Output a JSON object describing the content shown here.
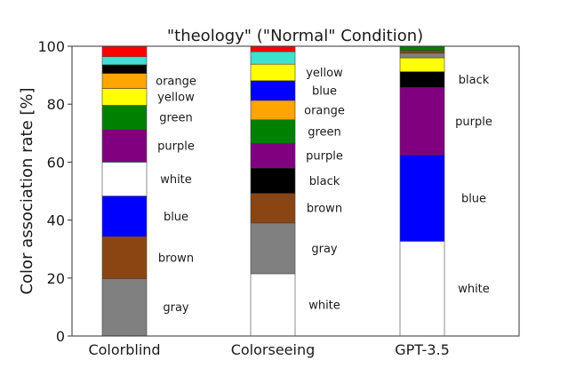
{
  "chart_data": {
    "type": "bar",
    "stacked": true,
    "title": "\"theology\" (\"Normal\" Condition)",
    "xlabel": "",
    "ylabel": "Color association rate [%]",
    "ylim": [
      0,
      100
    ],
    "yticks": [
      0,
      20,
      40,
      60,
      80,
      100
    ],
    "grid": false,
    "categories": [
      "Colorblind",
      "Colorseeing",
      "GPT-3.5"
    ],
    "bars": [
      {
        "category": "Colorblind",
        "segments": [
          {
            "name": "gray",
            "value": 19.8,
            "color": "#808080",
            "label": "gray"
          },
          {
            "name": "brown",
            "value": 14.5,
            "color": "#8b4513",
            "label": "brown"
          },
          {
            "name": "blue",
            "value": 14.0,
            "color": "#0000ff",
            "label": "blue"
          },
          {
            "name": "white",
            "value": 11.7,
            "color": "#ffffff",
            "label": "white"
          },
          {
            "name": "purple",
            "value": 11.2,
            "color": "#800080",
            "label": "purple"
          },
          {
            "name": "green",
            "value": 8.4,
            "color": "#008000",
            "label": "green"
          },
          {
            "name": "yellow",
            "value": 5.8,
            "color": "#ffff00",
            "label": "yellow"
          },
          {
            "name": "orange",
            "value": 5.2,
            "color": "#ffa500",
            "label": "orange"
          },
          {
            "name": "black",
            "value": 3.0,
            "color": "#000000",
            "label": ""
          },
          {
            "name": "turquoise",
            "value": 2.8,
            "color": "#40e0d0",
            "label": ""
          },
          {
            "name": "red",
            "value": 3.6,
            "color": "#ff0000",
            "label": ""
          }
        ]
      },
      {
        "category": "Colorseeing",
        "segments": [
          {
            "name": "white",
            "value": 21.5,
            "color": "#ffffff",
            "label": "white"
          },
          {
            "name": "gray",
            "value": 17.5,
            "color": "#808080",
            "label": "gray"
          },
          {
            "name": "brown",
            "value": 10.2,
            "color": "#8b4513",
            "label": "brown"
          },
          {
            "name": "black",
            "value": 8.8,
            "color": "#000000",
            "label": "black"
          },
          {
            "name": "purple",
            "value": 8.5,
            "color": "#800080",
            "label": "purple"
          },
          {
            "name": "green",
            "value": 8.1,
            "color": "#008000",
            "label": "green"
          },
          {
            "name": "orange",
            "value": 6.7,
            "color": "#ffa500",
            "label": "orange"
          },
          {
            "name": "blue",
            "value": 6.8,
            "color": "#0000ff",
            "label": "blue"
          },
          {
            "name": "yellow",
            "value": 5.7,
            "color": "#ffff00",
            "label": "yellow"
          },
          {
            "name": "turquoise",
            "value": 4.3,
            "color": "#40e0d0",
            "label": ""
          },
          {
            "name": "red",
            "value": 1.9,
            "color": "#ff0000",
            "label": ""
          }
        ]
      },
      {
        "category": "GPT-3.5",
        "segments": [
          {
            "name": "white",
            "value": 32.7,
            "color": "#ffffff",
            "label": "white"
          },
          {
            "name": "blue",
            "value": 29.8,
            "color": "#0000ff",
            "label": "blue"
          },
          {
            "name": "purple",
            "value": 23.2,
            "color": "#800080",
            "label": "purple"
          },
          {
            "name": "black",
            "value": 5.5,
            "color": "#000000",
            "label": "black"
          },
          {
            "name": "yellow",
            "value": 4.8,
            "color": "#ffff00",
            "label": ""
          },
          {
            "name": "gray",
            "value": 1.6,
            "color": "#808080",
            "label": ""
          },
          {
            "name": "brown",
            "value": 0.9,
            "color": "#8b4513",
            "label": ""
          },
          {
            "name": "green",
            "value": 1.5,
            "color": "#008000",
            "label": ""
          }
        ]
      }
    ]
  }
}
